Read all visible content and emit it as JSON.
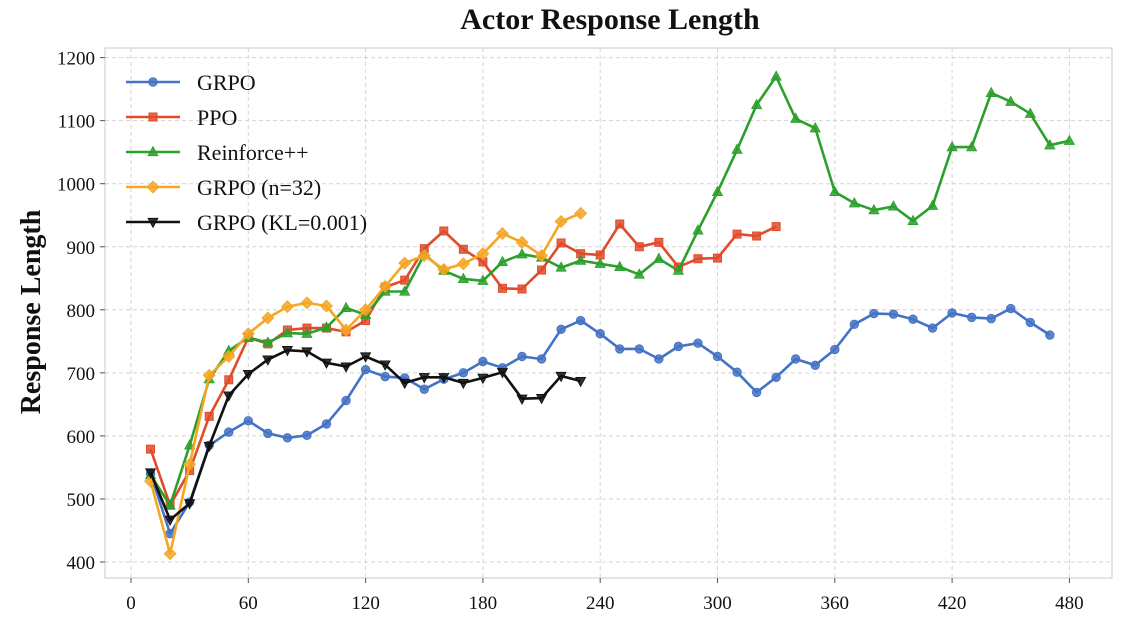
{
  "chart_data": {
    "type": "line",
    "title": "Actor Response Length",
    "xlabel": "",
    "ylabel": "Response Length",
    "xlim": [
      -10,
      500
    ],
    "ylim": [
      385,
      1210
    ],
    "xticks": [
      0,
      60,
      120,
      180,
      240,
      300,
      360,
      420,
      480
    ],
    "yticks": [
      400,
      500,
      600,
      700,
      800,
      900,
      1000,
      1100,
      1200
    ],
    "grid": true,
    "legend_position": "top-left",
    "series": [
      {
        "name": "GRPO",
        "color": "#4472C4",
        "marker": "circle",
        "x": [
          10,
          20,
          30,
          40,
          50,
          60,
          70,
          80,
          90,
          100,
          110,
          120,
          130,
          140,
          150,
          160,
          170,
          180,
          190,
          200,
          210,
          220,
          230,
          240,
          250,
          260,
          270,
          280,
          290,
          300,
          310,
          320,
          330,
          340,
          350,
          360,
          370,
          380,
          390,
          400,
          410,
          420,
          430,
          440,
          450,
          460,
          470
        ],
        "values": [
          540,
          445,
          495,
          585,
          606,
          624,
          604,
          597,
          601,
          619,
          656,
          705,
          694,
          692,
          674,
          690,
          700,
          718,
          708,
          726,
          722,
          769,
          783,
          762,
          738,
          738,
          722,
          742,
          747,
          726,
          701,
          669,
          693,
          722,
          712,
          737,
          777,
          794,
          793,
          785,
          771,
          795,
          788,
          786,
          802,
          780,
          760
        ]
      },
      {
        "name": "PPO",
        "color": "#E04B2A",
        "marker": "square",
        "x": [
          10,
          20,
          30,
          40,
          50,
          60,
          70,
          80,
          90,
          100,
          110,
          120,
          130,
          140,
          150,
          160,
          170,
          180,
          190,
          200,
          210,
          220,
          230,
          240,
          250,
          260,
          270,
          280,
          290,
          300,
          310,
          320,
          330
        ],
        "values": [
          579,
          490,
          545,
          631,
          689,
          756,
          746,
          768,
          771,
          771,
          765,
          783,
          836,
          847,
          897,
          925,
          896,
          876,
          834,
          833,
          863,
          906,
          889,
          887,
          936,
          900,
          907,
          868,
          881,
          882,
          920,
          917,
          932
        ]
      },
      {
        "name": "Reinforce++",
        "color": "#2CA02C",
        "marker": "triangle-up",
        "x": [
          10,
          20,
          30,
          40,
          50,
          60,
          70,
          80,
          90,
          100,
          110,
          120,
          130,
          140,
          150,
          160,
          170,
          180,
          190,
          200,
          210,
          220,
          230,
          240,
          250,
          260,
          270,
          280,
          290,
          300,
          310,
          320,
          330,
          340,
          350,
          360,
          370,
          380,
          390,
          400,
          410,
          420,
          430,
          440,
          450,
          460,
          470,
          480
        ],
        "values": [
          538,
          490,
          585,
          690,
          735,
          756,
          748,
          763,
          762,
          772,
          803,
          792,
          829,
          829,
          888,
          862,
          849,
          846,
          876,
          888,
          883,
          867,
          878,
          873,
          868,
          856,
          881,
          862,
          926,
          987,
          1054,
          1125,
          1170,
          1103,
          1088,
          987,
          969,
          958,
          964,
          941,
          965,
          1058,
          1058,
          1144,
          1130,
          1111,
          1061,
          1068
        ]
      },
      {
        "name": "GRPO (n=32)",
        "color": "#F5A623",
        "marker": "diamond",
        "x": [
          10,
          20,
          30,
          40,
          50,
          60,
          70,
          80,
          90,
          100,
          110,
          120,
          130,
          140,
          150,
          160,
          170,
          180,
          190,
          200,
          210,
          220,
          230
        ],
        "values": [
          528,
          413,
          555,
          696,
          726,
          762,
          787,
          805,
          811,
          806,
          768,
          800,
          837,
          874,
          886,
          864,
          873,
          889,
          921,
          907,
          886,
          940,
          953
        ]
      },
      {
        "name": "GRPO (KL=0.001)",
        "color": "#111111",
        "marker": "triangle-down",
        "x": [
          10,
          20,
          30,
          40,
          50,
          60,
          70,
          80,
          90,
          100,
          110,
          120,
          130,
          140,
          150,
          160,
          170,
          180,
          190,
          200,
          210,
          220,
          230
        ],
        "values": [
          542,
          467,
          493,
          584,
          664,
          698,
          721,
          736,
          734,
          716,
          710,
          726,
          713,
          684,
          693,
          693,
          684,
          692,
          701,
          659,
          660,
          695,
          687
        ]
      }
    ]
  }
}
